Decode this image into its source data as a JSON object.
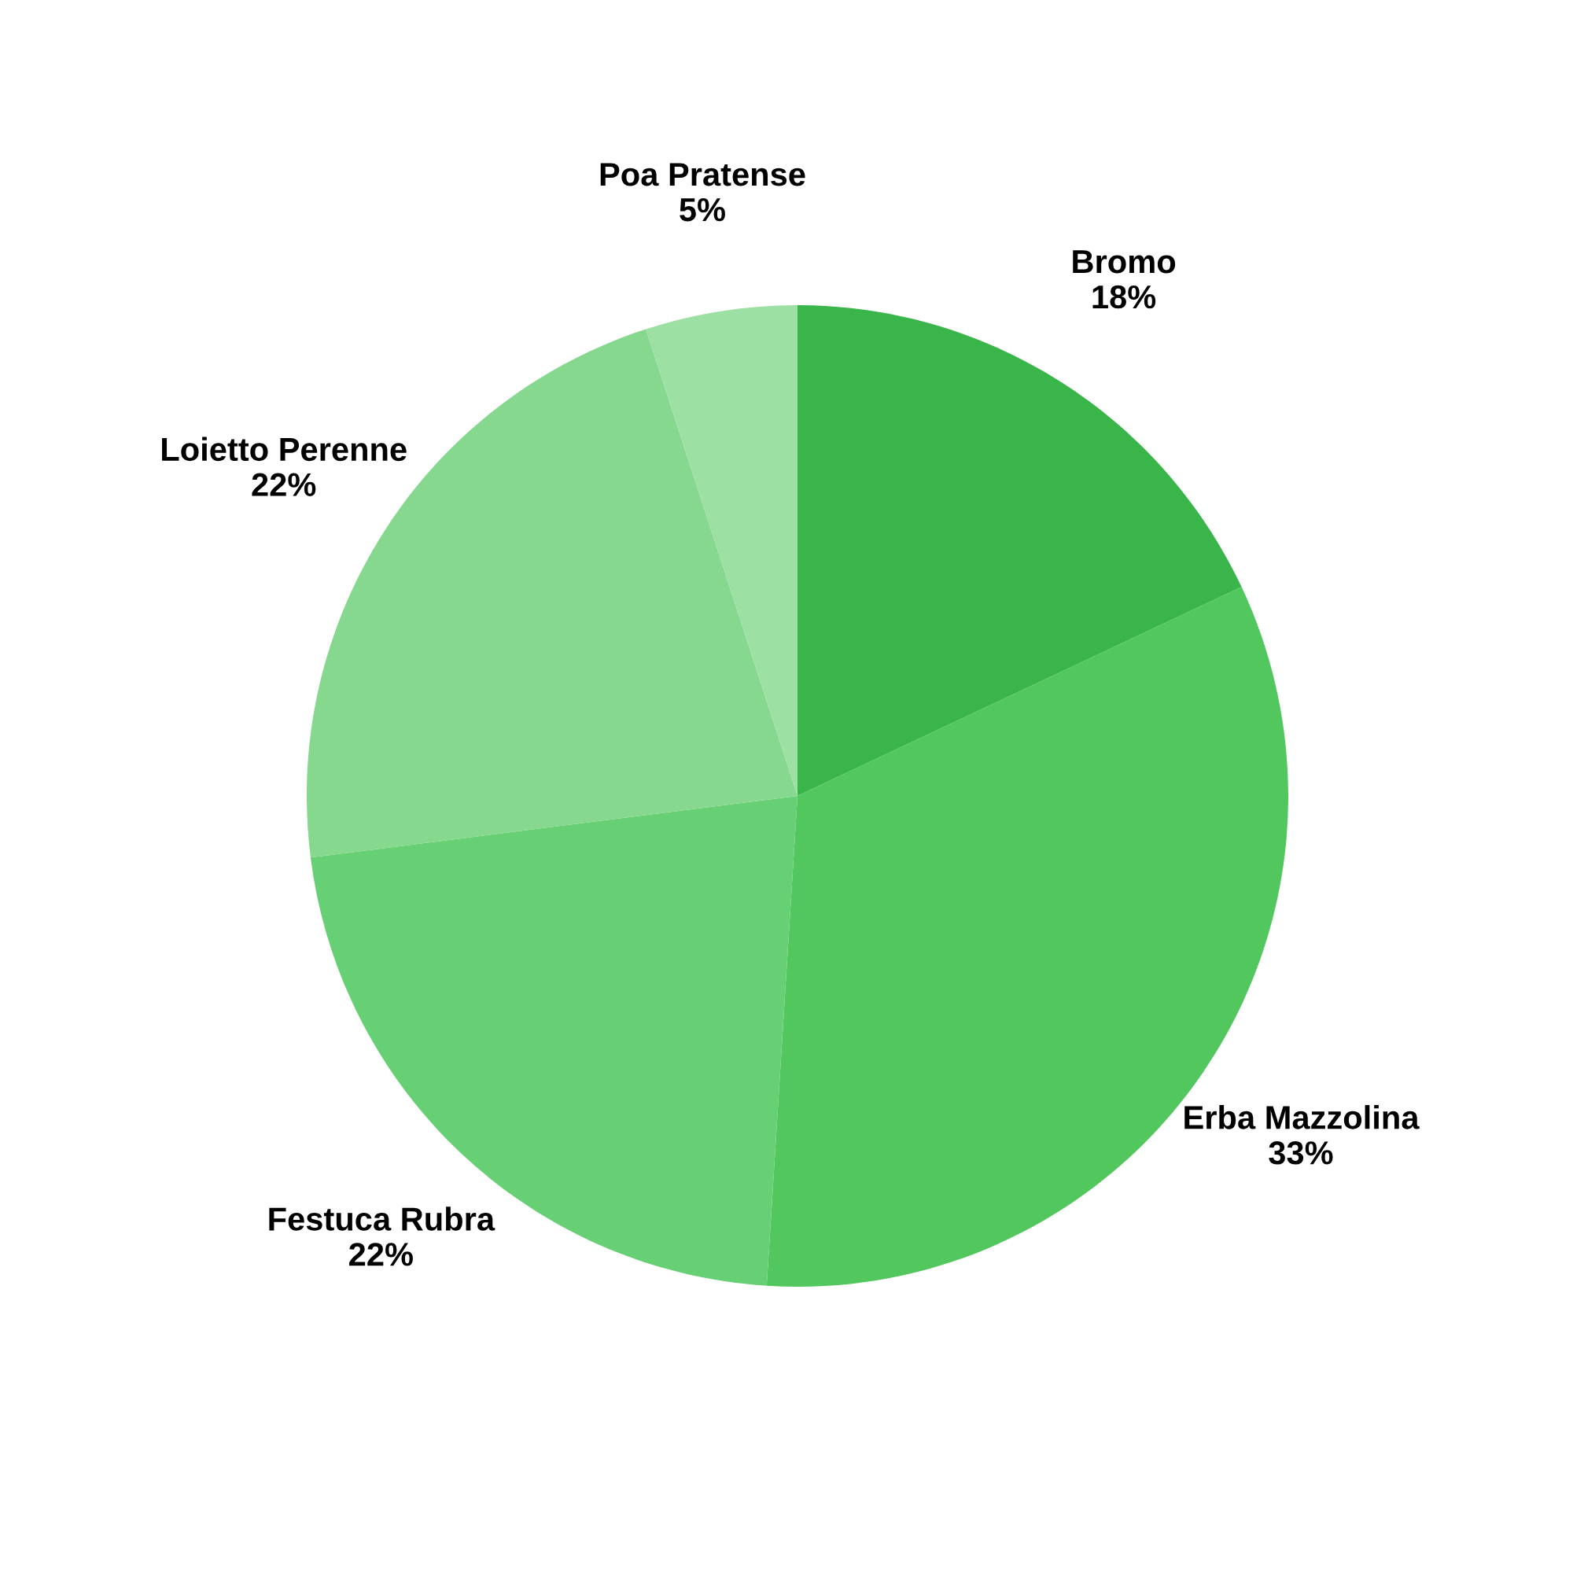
{
  "chart_data": {
    "type": "pie",
    "categories": [
      "Bromo",
      "Erba Mazzolina",
      "Festuca Rubra",
      "Loietto Perenne",
      "Poa Pratense"
    ],
    "values": [
      18,
      33,
      22,
      22,
      5
    ],
    "colors": [
      "#3ab54a",
      "#52c75e",
      "#67cf74",
      "#86d88f",
      "#9de0a3"
    ],
    "value_labels": [
      "18%",
      "33%",
      "22%",
      "22%",
      "5%"
    ]
  }
}
